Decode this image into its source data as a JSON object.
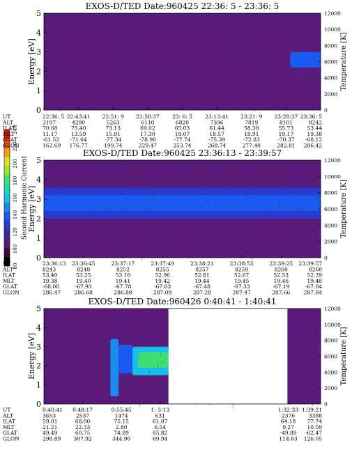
{
  "colorbar": {
    "title": "Second Harmonic Current",
    "ticks": [
      "80",
      "100",
      "120",
      "140",
      "160",
      "180",
      "200",
      "220",
      "240"
    ],
    "colors": [
      "#000000",
      "#3b0a3b",
      "#5a1a7a",
      "#3a2a9a",
      "#2a3acc",
      "#1a5aee",
      "#1a8cf0",
      "#16c0e8",
      "#20d8b0",
      "#40e070",
      "#90e830",
      "#e0e020",
      "#f0a010",
      "#f05010",
      "#e01010"
    ]
  },
  "field_labels": [
    "UT",
    "ALT",
    "ILAT",
    "MLT",
    "GLAT",
    "GLON"
  ],
  "chart_data": [
    {
      "type": "heatmap",
      "title": "EXOS-D/TED    Date:960425  22:36: 5 - 23:36: 5",
      "ylabel": "Energy [eV]",
      "y2label": "Temperature [K]",
      "yticks": [
        "0",
        "1",
        "2",
        "3",
        "4",
        "5"
      ],
      "ylim": [
        0,
        5
      ],
      "y2ticks": [
        "0",
        "2000",
        "4000",
        "6000",
        "8000",
        "10000",
        "12000"
      ],
      "y2lim": [
        0,
        12000
      ],
      "x_ticks": [
        {
          "UT": "22:36: 5",
          "ALT": "3197",
          "ILAT": "70.68",
          "MLT": "11.17",
          "GLAT": "-61.52",
          "GLON": "162.69"
        },
        {
          "UT": "22:43:41",
          "ALT": "4290",
          "ILAT": "75.40",
          "MLT": "13.59",
          "GLAT": "-71.64",
          "GLON": "176.77"
        },
        {
          "UT": "22:51: 9",
          "ALT": "5263",
          "ILAT": "73.13",
          "MLT": "15.91",
          "GLAT": "-77.34",
          "GLON": "199.74"
        },
        {
          "UT": "22:58:37",
          "ALT": "6110",
          "ILAT": "69.02",
          "MLT": "17.30",
          "GLAT": "-78.90",
          "GLON": "229.47"
        },
        {
          "UT": "23: 6: 5",
          "ALT": "6820",
          "ILAT": "65.03",
          "MLT": "18.07",
          "GLAT": "-77.74",
          "GLON": "253.74"
        },
        {
          "UT": "23:13:41",
          "ALT": "7396",
          "ILAT": "61.44",
          "MLT": "18.57",
          "GLAT": "-75.39",
          "GLON": "268.74"
        },
        {
          "UT": "23:21: 9",
          "ALT": "7819",
          "ILAT": "58.38",
          "MLT": "18.91",
          "GLAT": "-72.83",
          "GLON": "277.40"
        },
        {
          "UT": "23:28:37",
          "ALT": "8101",
          "ILAT": "55.73",
          "MLT": "19.17",
          "GLAT": "-70.37",
          "GLON": "282.81"
        },
        {
          "UT": "23:36: 5",
          "ALT": "8242",
          "ILAT": "53.44",
          "MLT": "19.38",
          "GLAT": "-68.12",
          "GLON": "286.42"
        }
      ],
      "background_level": 110,
      "bands": [
        {
          "t0": 0.89,
          "t1": 1.0,
          "e0": 2.2,
          "e1": 3.0,
          "level": 135
        }
      ],
      "gaps": []
    },
    {
      "type": "heatmap",
      "title": "EXOS-D/TED    Date:960425  23:36:13 - 23:39:57",
      "ylabel": "Energy [eV]",
      "y2label": "Temperature [K]",
      "yticks": [
        "0",
        "1",
        "2",
        "3",
        "4",
        "5"
      ],
      "ylim": [
        0,
        5
      ],
      "y2ticks": [
        "0",
        "2000",
        "4000",
        "6000",
        "8000",
        "10000",
        "12000"
      ],
      "y2lim": [
        0,
        12000
      ],
      "x_ticks": [
        {
          "UT": "23:36:13",
          "ALT": "8243",
          "ILAT": "53.40",
          "MLT": "19.38",
          "GLAT": "-68.08",
          "GLON": "286.47"
        },
        {
          "UT": "23:36:45",
          "ALT": "8248",
          "ILAT": "53.25",
          "MLT": "19.40",
          "GLAT": "-67.93",
          "GLON": "286.68"
        },
        {
          "UT": "23:37:17",
          "ALT": "8252",
          "ILAT": "53.10",
          "MLT": "19.41",
          "GLAT": "-67.78",
          "GLON": "286.88"
        },
        {
          "UT": "23:37:49",
          "ALT": "8255",
          "ILAT": "52.96",
          "MLT": "19.42",
          "GLAT": "-67.63",
          "GLON": "287.08"
        },
        {
          "UT": "23:38:21",
          "ALT": "8257",
          "ILAT": "52.81",
          "MLT": "19.44",
          "GLAT": "-67.48",
          "GLON": "287.28"
        },
        {
          "UT": "23:38:53",
          "ALT": "8259",
          "ILAT": "52.67",
          "MLT": "19.45",
          "GLAT": "-67.33",
          "GLON": "287.47"
        },
        {
          "UT": "23:39:25",
          "ALT": "8260",
          "ILAT": "52.53",
          "MLT": "19.46",
          "GLAT": "-67.19",
          "GLON": "287.66"
        },
        {
          "UT": "23:39:57",
          "ALT": "8260",
          "ILAT": "52.39",
          "MLT": "19.48",
          "GLAT": "-67.04",
          "GLON": "287.84"
        }
      ],
      "background_level": 110,
      "bands": [
        {
          "t0": 0.0,
          "t1": 1.0,
          "e0": 2.0,
          "e1": 3.6,
          "level": 130
        },
        {
          "t0": 0.0,
          "t1": 1.0,
          "e0": 2.4,
          "e1": 3.2,
          "level": 140
        }
      ],
      "gaps": []
    },
    {
      "type": "heatmap",
      "title": "EXOS-D/TED    Date:960426   0:40:41 - 1:40:41",
      "ylabel": "Energy [eV]",
      "y2label": "Temperature [K]",
      "yticks": [
        "0",
        "1",
        "2",
        "3",
        "4",
        "5"
      ],
      "ylim": [
        0,
        5
      ],
      "y2ticks": [
        "0",
        "2000",
        "4000",
        "6000",
        "8000",
        "10000",
        "12000"
      ],
      "y2lim": [
        0,
        12000
      ],
      "x_ticks": [
        {
          "UT": "0:40:41",
          "ALT": "3653",
          "ILAT": "59.01",
          "MLT": "21.21",
          "GLAT": "49.49",
          "GLON": "298.89"
        },
        {
          "UT": "0:48:17",
          "ALT": "2537",
          "ILAT": "68.00",
          "MLT": "22.33",
          "GLAT": "60.75",
          "GLON": "307.92"
        },
        {
          "UT": "0:55:45",
          "ALT": "1474",
          "ILAT": "75.15",
          "MLT": "2.80",
          "GLAT": "74.89",
          "GLON": "344.90"
        },
        {
          "UT": "1: 3:13",
          "ALT": "631",
          "ILAT": "61.07",
          "MLT": "6.54",
          "GLAT": "65.82",
          "GLON": "69.94"
        },
        {
          "UT": "1:32:33",
          "ALT": "2376",
          "ILAT": "64.18",
          "MLT": "9.27",
          "GLAT": "-49.89",
          "GLON": "114.63"
        },
        {
          "UT": "1:39:21",
          "ALT": "3388",
          "ILAT": "77.74",
          "MLT": "10.59",
          "GLAT": "-62.47",
          "GLON": "126.05"
        }
      ],
      "background_level": 110,
      "bands": [
        {
          "t0": 0.24,
          "t1": 0.27,
          "e0": 0.4,
          "e1": 3.4,
          "level": 150
        },
        {
          "t0": 0.27,
          "t1": 0.32,
          "e0": 1.6,
          "e1": 3.1,
          "level": 140
        },
        {
          "t0": 0.32,
          "t1": 0.45,
          "e0": 1.5,
          "e1": 3.0,
          "level": 160
        },
        {
          "t0": 0.34,
          "t1": 0.45,
          "e0": 1.9,
          "e1": 2.7,
          "level": 180
        }
      ],
      "gaps": [
        {
          "t0": 0.45,
          "t1": 0.88
        }
      ]
    }
  ]
}
